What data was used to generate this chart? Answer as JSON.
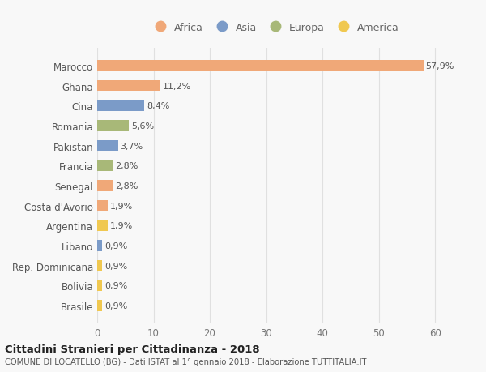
{
  "countries": [
    "Marocco",
    "Ghana",
    "Cina",
    "Romania",
    "Pakistan",
    "Francia",
    "Senegal",
    "Costa d'Avorio",
    "Argentina",
    "Libano",
    "Rep. Dominicana",
    "Bolivia",
    "Brasile"
  ],
  "values": [
    57.9,
    11.2,
    8.4,
    5.6,
    3.7,
    2.8,
    2.8,
    1.9,
    1.9,
    0.9,
    0.9,
    0.9,
    0.9
  ],
  "labels": [
    "57,9%",
    "11,2%",
    "8,4%",
    "5,6%",
    "3,7%",
    "2,8%",
    "2,8%",
    "1,9%",
    "1,9%",
    "0,9%",
    "0,9%",
    "0,9%",
    "0,9%"
  ],
  "continents": [
    "Africa",
    "Africa",
    "Asia",
    "Europa",
    "Asia",
    "Europa",
    "Africa",
    "Africa",
    "America",
    "Asia",
    "America",
    "America",
    "America"
  ],
  "continent_colors": {
    "Africa": "#F0A878",
    "Asia": "#7B9BC8",
    "Europa": "#A8B878",
    "America": "#F0C850"
  },
  "legend_order": [
    "Africa",
    "Asia",
    "Europa",
    "America"
  ],
  "title_main": "Cittadini Stranieri per Cittadinanza - 2018",
  "title_sub": "COMUNE DI LOCATELLO (BG) - Dati ISTAT al 1° gennaio 2018 - Elaborazione TUTTITALIA.IT",
  "xlim": [
    0,
    63
  ],
  "xticks": [
    0,
    10,
    20,
    30,
    40,
    50,
    60
  ],
  "background_color": "#f8f8f8",
  "grid_color": "#e0e0e0"
}
